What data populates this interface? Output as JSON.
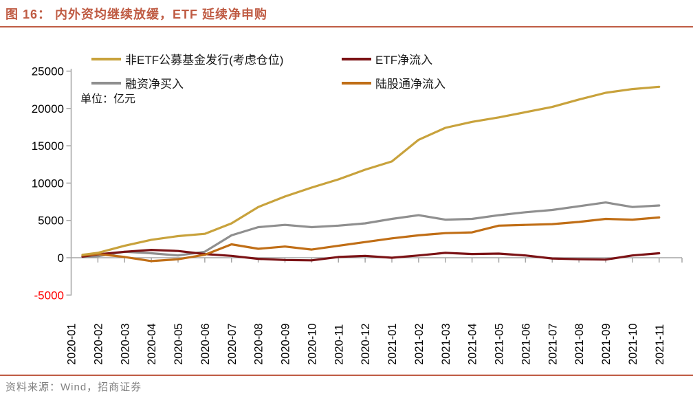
{
  "header": {
    "title": "图 16：  内外资均继续放缓，ETF 延续净申购"
  },
  "footer": {
    "source": "资料来源：Wind，招商证券"
  },
  "chart_data": {
    "type": "line",
    "unit_label": "单位：亿元",
    "legend_position": "top",
    "grid": "zero-line-only",
    "x": [
      "2020-01",
      "2020-02",
      "2020-03",
      "2020-04",
      "2020-05",
      "2020-06",
      "2020-07",
      "2020-08",
      "2020-09",
      "2020-10",
      "2020-11",
      "2020-12",
      "2021-01",
      "2021-02",
      "2021-03",
      "2021-04",
      "2021-05",
      "2021-06",
      "2021-07",
      "2021-08",
      "2021-09",
      "2021-10",
      "2021-11"
    ],
    "ylim": [
      -5000,
      25000
    ],
    "y_ticks": [
      25000,
      20000,
      15000,
      10000,
      5000,
      0,
      -5000
    ],
    "y_tick_colors": [
      "#000000",
      "#000000",
      "#000000",
      "#000000",
      "#000000",
      "#000000",
      "#ff0000"
    ],
    "axis_color": "#a6a6a6",
    "series": [
      {
        "name": "非ETF公募基金发行(考虑仓位)",
        "color": "#c8a23c",
        "values": [
          400,
          650,
          1600,
          2400,
          2900,
          3200,
          4600,
          6800,
          8200,
          9400,
          10500,
          11800,
          12900,
          15800,
          17400,
          18200,
          18800,
          19500,
          20200,
          21200,
          22100,
          22600,
          22900
        ]
      },
      {
        "name": "ETF净流入",
        "color": "#7b1215",
        "values": [
          150,
          450,
          800,
          1050,
          900,
          500,
          250,
          -150,
          -300,
          -350,
          100,
          250,
          0,
          300,
          650,
          500,
          550,
          300,
          -100,
          -200,
          -250,
          300,
          600
        ]
      },
      {
        "name": "融资净买入",
        "color": "#8f8f8f",
        "values": [
          100,
          200,
          800,
          600,
          300,
          800,
          3000,
          4100,
          4400,
          4100,
          4300,
          4600,
          5200,
          5700,
          5100,
          5200,
          5700,
          6100,
          6400,
          6900,
          7400,
          6800,
          7000
        ]
      },
      {
        "name": "陆股通净流入",
        "color": "#c06e16",
        "values": [
          300,
          500,
          100,
          -450,
          -200,
          400,
          1800,
          1200,
          1500,
          1100,
          1600,
          2100,
          2600,
          3000,
          3300,
          3400,
          4300,
          4400,
          4500,
          4800,
          5200,
          5100,
          5400
        ]
      }
    ]
  }
}
